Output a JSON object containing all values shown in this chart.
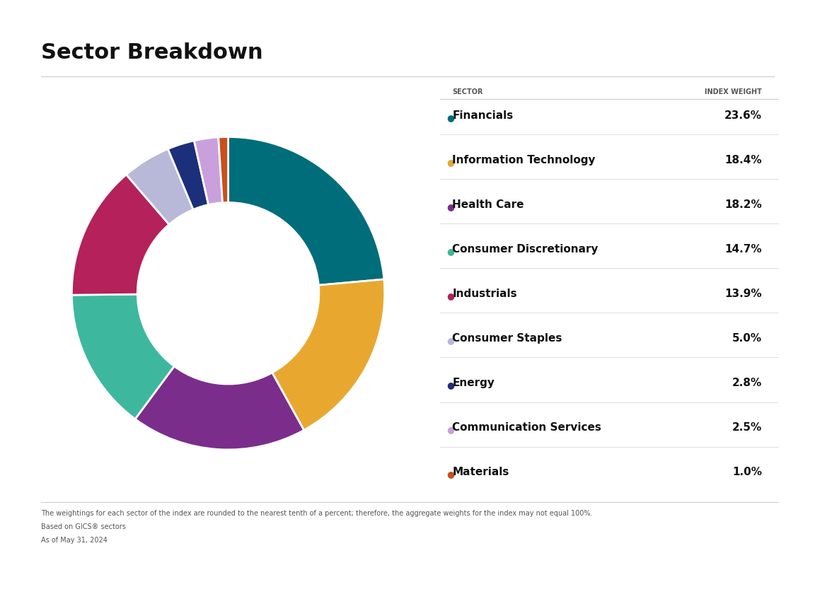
{
  "title": "Sector Breakdown",
  "sectors": [
    {
      "name": "Financials",
      "weight": 23.6,
      "color": "#006d7a"
    },
    {
      "name": "Information Technology",
      "weight": 18.4,
      "color": "#e8a830"
    },
    {
      "name": "Health Care",
      "weight": 18.2,
      "color": "#7b2d8b"
    },
    {
      "name": "Consumer Discretionary",
      "weight": 14.7,
      "color": "#3db89e"
    },
    {
      "name": "Industrials",
      "weight": 13.9,
      "color": "#b5215a"
    },
    {
      "name": "Consumer Staples",
      "weight": 5.0,
      "color": "#b8b8d8"
    },
    {
      "name": "Energy",
      "weight": 2.8,
      "color": "#1c2f7a"
    },
    {
      "name": "Communication Services",
      "weight": 2.5,
      "color": "#c9a0dc"
    },
    {
      "name": "Materials",
      "weight": 1.0,
      "color": "#c8501a"
    }
  ],
  "col_header_sector": "SECTOR",
  "col_header_weight": "INDEX WEIGHT",
  "footnote_lines": [
    "The weightings for each sector of the index are rounded to the nearest tenth of a percent; therefore, the aggregate weights for the index may not equal 100%.",
    "Based on GICS® sectors",
    "As of May 31, 2024"
  ],
  "background_color": "#ffffff",
  "title_fontsize": 22,
  "header_fontsize": 7,
  "row_label_fontsize": 11,
  "row_weight_fontsize": 11,
  "footnote_fontsize": 7
}
